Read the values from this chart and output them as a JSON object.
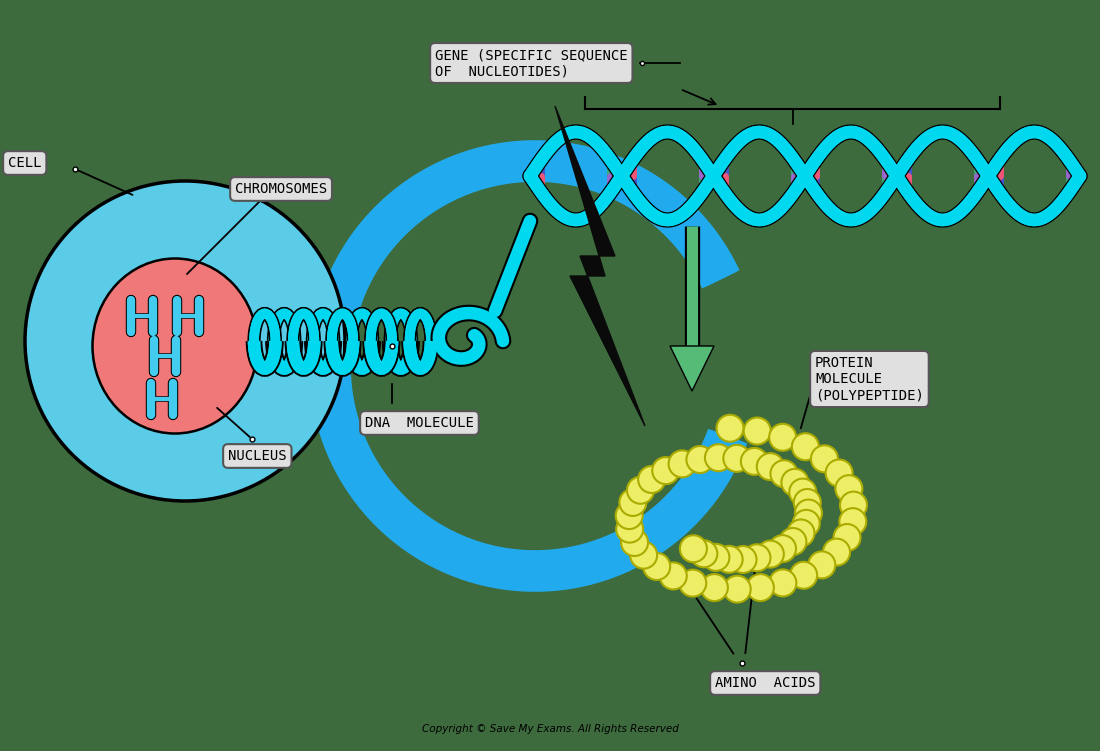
{
  "background_color": "#3d6b3d",
  "label_box_color": "#e0e0e0",
  "label_box_edge": "#555555",
  "cell_outer_color": "#5bcce8",
  "cell_inner_color": "#f07878",
  "nucleus_label": "NUCLEUS",
  "chromosomes_label": "CHROMOSOMES",
  "cell_label": "CELL",
  "gene_label": "GENE (SPECIFIC SEQUENCE\nOF  NUCLEOTIDES)",
  "dna_label": "DNA  MOLECULE",
  "protein_label": "PROTEIN\nMOLECULE\n(POLYPEPTIDE)",
  "amino_label": "AMINO  ACIDS",
  "copyright": "Copyright © Save My Exams. All Rights Reserved",
  "dna_backbone_color": "#00d8f0",
  "arrow_blue_color": "#22aaee",
  "arrow_green_color": "#55bb77",
  "lightning_color": "#0a0a0a",
  "amino_color": "#eeee66",
  "amino_edge": "#aaaa00",
  "base_colors": [
    "#4455cc",
    "#9966cc",
    "#ee5577",
    "#33aa77"
  ],
  "chrom_color": "#44ccee"
}
